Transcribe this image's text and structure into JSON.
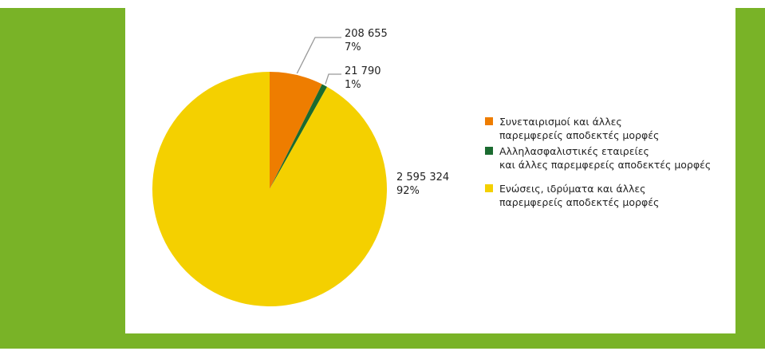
{
  "chart_data": {
    "type": "pie",
    "slices": [
      {
        "label": "Συνεταιρισμοί και άλλες παρεμφερείς αποδεκτές μορφές",
        "legend_lines": [
          "Συνεταιρισμοί και άλλες",
          "παρεμφερείς αποδεκτές μορφές"
        ],
        "value": 208655,
        "value_text": "208 655",
        "percent_text": "7%",
        "color": "#ee7d00"
      },
      {
        "label": "Αλληλασφαλιστικές εταιρείες και άλλες παρεμφερείς αποδεκτές μορφές",
        "legend_lines": [
          "Αλληλασφαλιστικές εταιρείες",
          "και άλλες παρεμφερείς αποδεκτές μορφές"
        ],
        "value": 21790,
        "value_text": "21 790",
        "percent_text": "1%",
        "color": "#1b6b30"
      },
      {
        "label": "Ενώσεις, ιδρύματα και άλλες παρεμφερείς αποδεκτές μορφές",
        "legend_lines": [
          "Ενώσεις, ιδρύματα και άλλες",
          "παρεμφερείς αποδεκτές μορφές"
        ],
        "value": 2595324,
        "value_text": "2 595 324",
        "percent_text": "92%",
        "color": "#f4d000"
      }
    ],
    "legend_placement": "right"
  },
  "colors": {
    "frame": "#79b327",
    "panel": "#ffffff",
    "leader": "#999999"
  }
}
